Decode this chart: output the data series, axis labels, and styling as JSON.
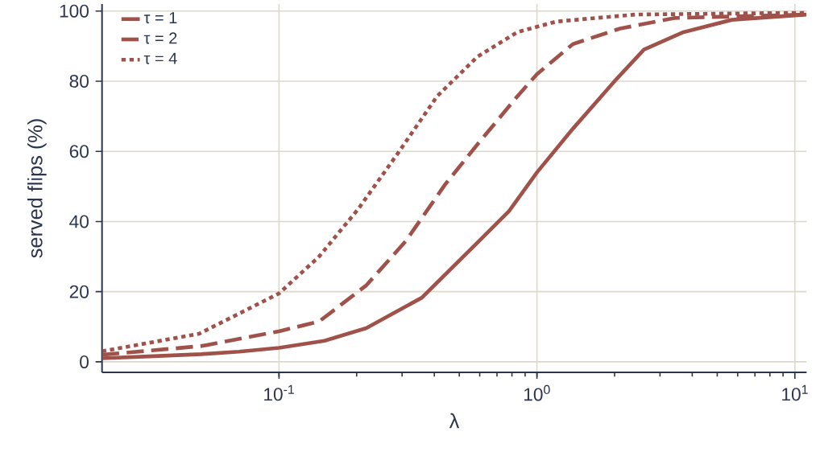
{
  "chart_data": {
    "type": "line",
    "xlabel": "λ",
    "ylabel": "served flips (%)",
    "log": "x",
    "xlim": [
      0.0206,
      11.1
    ],
    "ylim": [
      -3,
      102
    ],
    "xticks": [
      {
        "value": 0.1,
        "label": "10$^{-1}$"
      },
      {
        "value": 1,
        "label": "10$^{0}$"
      },
      {
        "value": 10,
        "label": "10$^{1}$"
      }
    ],
    "yticks": [
      0,
      20,
      40,
      60,
      80,
      100
    ],
    "grid": true,
    "legend": "top left",
    "series": [
      {
        "name": "τ = 1",
        "color": "#a0524a",
        "line_style": "solid",
        "x": [
          0.0206,
          0.03,
          0.05,
          0.07,
          0.1,
          0.15,
          0.218,
          0.358,
          0.588,
          0.78,
          1.0,
          1.38,
          2.0,
          2.6,
          3.7,
          5.7,
          11.1
        ],
        "values": [
          1,
          1.5,
          2.2,
          2.9,
          4,
          6,
          9.6,
          18.3,
          34,
          43,
          54,
          66.5,
          80,
          89,
          94,
          97.5,
          99
        ]
      },
      {
        "name": "τ = 2",
        "color": "#a0524a",
        "line_style": "dashed",
        "x": [
          0.0206,
          0.05,
          0.1,
          0.143,
          0.218,
          0.31,
          0.44,
          0.588,
          0.84,
          1.0,
          1.38,
          2.1,
          3.4,
          11.1
        ],
        "values": [
          2,
          4.5,
          8.7,
          11.5,
          21.8,
          34.4,
          50.5,
          62,
          75.7,
          82,
          90.6,
          95,
          98,
          99
        ]
      },
      {
        "name": "τ = 4",
        "color": "#a0524a",
        "line_style": "dotted",
        "x": [
          0.0206,
          0.049,
          0.1,
          0.143,
          0.203,
          0.29,
          0.41,
          0.588,
          0.84,
          1.19,
          2.4,
          11.1
        ],
        "values": [
          3,
          8,
          19.5,
          30,
          43.6,
          59.6,
          75.7,
          87,
          94,
          97,
          99,
          99.5
        ]
      }
    ]
  }
}
